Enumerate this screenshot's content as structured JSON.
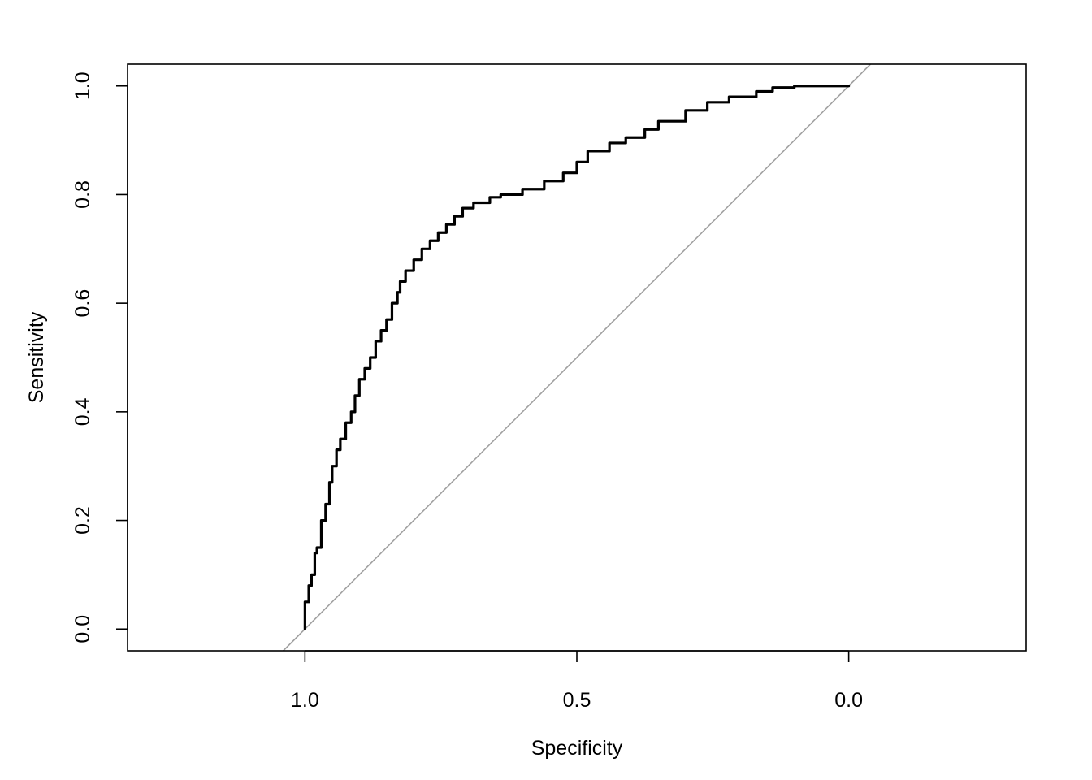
{
  "chart_data": {
    "type": "line",
    "title": "",
    "xlabel": "Specificity",
    "ylabel": "Sensitivity",
    "x_reversed": true,
    "xlim": [
      1.3263,
      -0.3263
    ],
    "ylim": [
      -0.04,
      1.04
    ],
    "x_ticks": [
      {
        "value": 1.0,
        "label": "1.0"
      },
      {
        "value": 0.5,
        "label": "0.5"
      },
      {
        "value": 0.0,
        "label": "0.0"
      }
    ],
    "y_ticks": [
      {
        "value": 0.0,
        "label": "0.0"
      },
      {
        "value": 0.2,
        "label": "0.2"
      },
      {
        "value": 0.4,
        "label": "0.4"
      },
      {
        "value": 0.6,
        "label": "0.6"
      },
      {
        "value": 0.8,
        "label": "0.8"
      },
      {
        "value": 1.0,
        "label": "1.0"
      }
    ],
    "grid": false,
    "reference_line": {
      "from": [
        1,
        0
      ],
      "to": [
        0,
        1
      ],
      "color": "#a0a0a0"
    },
    "series": [
      {
        "color": "#000000",
        "points": [
          [
            1.0,
            0.0
          ],
          [
            1.0,
            0.04
          ],
          [
            0.993,
            0.05
          ],
          [
            0.988,
            0.08
          ],
          [
            0.982,
            0.1
          ],
          [
            0.978,
            0.14
          ],
          [
            0.97,
            0.15
          ],
          [
            0.962,
            0.2
          ],
          [
            0.955,
            0.23
          ],
          [
            0.95,
            0.27
          ],
          [
            0.942,
            0.3
          ],
          [
            0.935,
            0.33
          ],
          [
            0.925,
            0.35
          ],
          [
            0.915,
            0.38
          ],
          [
            0.908,
            0.4
          ],
          [
            0.9,
            0.43
          ],
          [
            0.89,
            0.46
          ],
          [
            0.88,
            0.48
          ],
          [
            0.87,
            0.5
          ],
          [
            0.86,
            0.53
          ],
          [
            0.85,
            0.55
          ],
          [
            0.84,
            0.57
          ],
          [
            0.83,
            0.6
          ],
          [
            0.825,
            0.62
          ],
          [
            0.815,
            0.64
          ],
          [
            0.8,
            0.66
          ],
          [
            0.785,
            0.68
          ],
          [
            0.77,
            0.7
          ],
          [
            0.755,
            0.715
          ],
          [
            0.74,
            0.73
          ],
          [
            0.725,
            0.745
          ],
          [
            0.71,
            0.76
          ],
          [
            0.69,
            0.775
          ],
          [
            0.66,
            0.785
          ],
          [
            0.64,
            0.795
          ],
          [
            0.6,
            0.8
          ],
          [
            0.56,
            0.81
          ],
          [
            0.525,
            0.825
          ],
          [
            0.5,
            0.84
          ],
          [
            0.48,
            0.86
          ],
          [
            0.44,
            0.88
          ],
          [
            0.41,
            0.895
          ],
          [
            0.375,
            0.905
          ],
          [
            0.35,
            0.92
          ],
          [
            0.3,
            0.935
          ],
          [
            0.26,
            0.955
          ],
          [
            0.22,
            0.97
          ],
          [
            0.17,
            0.98
          ],
          [
            0.14,
            0.99
          ],
          [
            0.1,
            0.997
          ],
          [
            0.07,
            1.0
          ],
          [
            0.0,
            1.0
          ]
        ]
      }
    ]
  }
}
